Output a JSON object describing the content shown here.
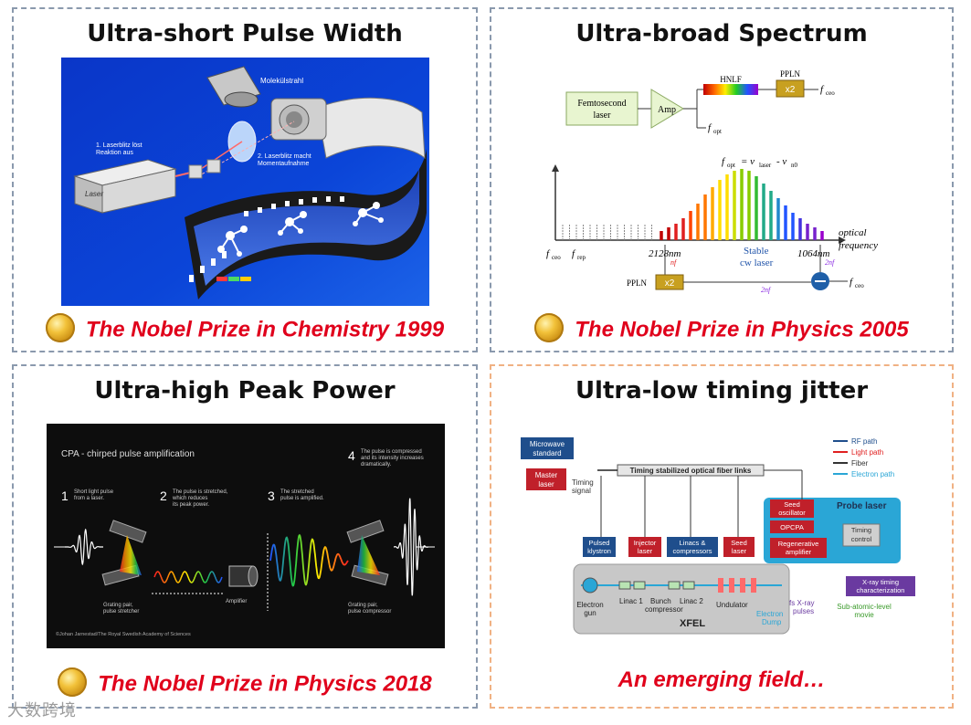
{
  "panels": {
    "tl": {
      "title": "Ultra-short Pulse Width",
      "prize": "The Nobel Prize in Chemistry 1999",
      "labels": {
        "beam": "Molekülstrahl",
        "laser1": "1. Laserblitz löst",
        "laser1b": "Reaktion aus",
        "laser2": "2. Laserblitz macht",
        "laser2b": "Momentaufnahme",
        "laserbox": "Laser"
      }
    },
    "tr": {
      "title": "Ultra-broad Spectrum",
      "prize": "The Nobel Prize in Physics 2005",
      "labels": {
        "femto": "Femtosecond",
        "femto2": "laser",
        "amp": "Amp",
        "hnlf": "HNLF",
        "ppln": "PPLN",
        "x2": "x2",
        "fceo": "f",
        "fceo_sub": "ceo",
        "fopt": "f",
        "fopt_sub": "opt",
        "eq": "f",
        "eq_rest": "= ν",
        "eq_rest2": "- ν",
        "eq_sub1": "opt",
        "eq_sub2": "laser",
        "eq_sub3": "n0",
        "optical": "optical",
        "frequency": "frequency",
        "frep": "f",
        "frep_sub": "rep",
        "nm2128": "2128nm",
        "nm1064": "1064nm",
        "stable": "Stable",
        "cw": "cw laser",
        "nfr": "nf",
        "nfr_rest": "+f",
        "nfr2": "2nf",
        "nfr3": "2nf",
        "nfr3_rest": "+2f"
      }
    },
    "bl": {
      "title": "Ultra-high Peak Power",
      "prize": "The Nobel Prize in Physics 2018",
      "labels": {
        "cpa": "CPA - chirped pulse amplification",
        "s1n": "1",
        "s1": "Short light pulse",
        "s1b": "from a laser.",
        "s2n": "2",
        "s2": "The pulse is stretched,",
        "s2b": "which reduces",
        "s2c": "its peak power.",
        "s3n": "3",
        "s3": "The stretched",
        "s3b": "pulse is amplified.",
        "s4n": "4",
        "s4": "The pulse is compressed",
        "s4b": "and its intensity increases",
        "s4c": "dramatically.",
        "g1": "Grating pair,",
        "g1b": "pulse stretcher",
        "amp": "Amplifier",
        "g2": "Grating pair,",
        "g2b": "pulse compressor",
        "credit": "©Johan Jarnestad/The Royal Swedish Academy of Sciences"
      }
    },
    "br": {
      "title": "Ultra-low timing jitter",
      "prize": "An emerging field…",
      "labels": {
        "microwave": "Microwave",
        "standard": "standard",
        "master": "Master",
        "laser": "laser",
        "timing": "Timing",
        "signal": "signal",
        "links": "Timing stabilized optical fiber links",
        "rf": "RF path",
        "light": "Light path",
        "fiber": "Fiber",
        "electron": "Electron path",
        "probe": "Probe laser",
        "seed_osc": "Seed",
        "seed_osc2": "oscillator",
        "opcpa": "OPCPA",
        "regen": "Regenerative",
        "regen2": "amplifier",
        "tc": "Timing",
        "tc2": "control",
        "pk": "Pulsed",
        "pk2": "klystron",
        "inj": "Injector",
        "inj2": "laser",
        "linacs": "Linacs &",
        "linacs2": "compressors",
        "seed": "Seed",
        "seed2": "laser",
        "egun": "Electron",
        "egun2": "gun",
        "linac1": "Linac 1",
        "bunch": "Bunch",
        "bunch2": "compressor",
        "linac2": "Linac 2",
        "und": "Undulator",
        "edump": "Electron",
        "edump2": "Dump",
        "xfel": "XFEL",
        "fs": "fs X-ray",
        "fs2": "pulses",
        "xray": "X-ray timing",
        "xray2": "characterization",
        "sub": "Sub-atomic-level",
        "sub2": "movie"
      }
    }
  },
  "watermark": "大数跨境",
  "colors": {
    "prize_red": "#e0001b",
    "panel_border": "#8a99ad",
    "panel_border_orange": "#f0b183"
  }
}
